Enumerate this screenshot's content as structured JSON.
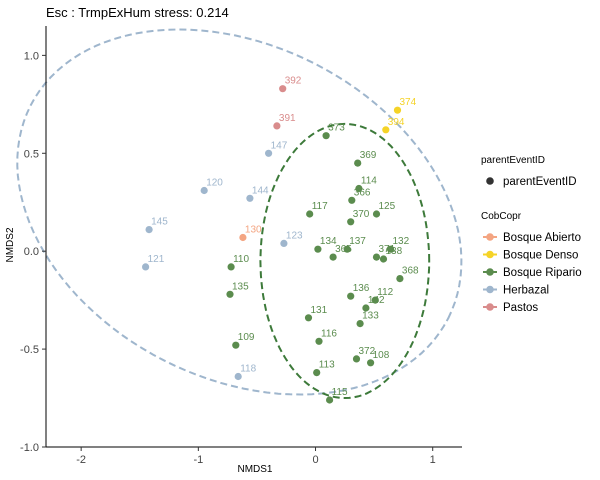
{
  "chart_data": {
    "type": "scatter",
    "title": "Esc : TrmpExHum stress: 0.214",
    "xlabel": "NMDS1",
    "ylabel": "NMDS2",
    "xlim": [
      -2.3,
      1.25
    ],
    "ylim": [
      -1.0,
      1.15
    ],
    "x_ticks": [
      -2,
      -1,
      0,
      1
    ],
    "y_ticks": [
      -1.0,
      -0.5,
      0.0,
      0.5,
      1.0
    ],
    "grid": false,
    "legend_placement": "right",
    "legend_shape": {
      "title": "parentEventID",
      "entries": [
        "parentEventID"
      ]
    },
    "legend_color": {
      "title": "CobCopr",
      "entries": [
        {
          "name": "Bosque Abierto",
          "color": "#f4a582"
        },
        {
          "name": "Bosque Denso",
          "color": "#f5d327"
        },
        {
          "name": "Bosque Ripario",
          "color": "#5b8c4e"
        },
        {
          "name": "Herbazal",
          "color": "#9fb6cd"
        },
        {
          "name": "Pastos",
          "color": "#d98c8c"
        }
      ]
    },
    "series": [
      {
        "name": "Bosque Abierto",
        "color": "#f4a582",
        "points": [
          {
            "label": "130",
            "x": -0.62,
            "y": 0.07
          }
        ]
      },
      {
        "name": "Bosque Denso",
        "color": "#f5d327",
        "points": [
          {
            "label": "374",
            "x": 0.7,
            "y": 0.72
          },
          {
            "label": "394",
            "x": 0.6,
            "y": 0.62
          }
        ]
      },
      {
        "name": "Bosque Ripario",
        "color": "#5b8c4e",
        "points": [
          {
            "label": "373",
            "x": 0.09,
            "y": 0.59
          },
          {
            "label": "369",
            "x": 0.36,
            "y": 0.45
          },
          {
            "label": "114",
            "x": 0.37,
            "y": 0.32
          },
          {
            "label": "366",
            "x": 0.31,
            "y": 0.26
          },
          {
            "label": "125",
            "x": 0.52,
            "y": 0.19
          },
          {
            "label": "117",
            "x": -0.05,
            "y": 0.19
          },
          {
            "label": "370",
            "x": 0.3,
            "y": 0.15
          },
          {
            "label": "134",
            "x": 0.02,
            "y": 0.01
          },
          {
            "label": "137",
            "x": 0.27,
            "y": 0.01
          },
          {
            "label": "132",
            "x": 0.64,
            "y": 0.01
          },
          {
            "label": "365",
            "x": 0.15,
            "y": -0.03
          },
          {
            "label": "371",
            "x": 0.52,
            "y": -0.03
          },
          {
            "label": "138",
            "x": 0.58,
            "y": -0.04
          },
          {
            "label": "368",
            "x": 0.72,
            "y": -0.14
          },
          {
            "label": "110",
            "x": -0.72,
            "y": -0.08
          },
          {
            "label": "136",
            "x": 0.3,
            "y": -0.23
          },
          {
            "label": "112",
            "x": 0.51,
            "y": -0.25
          },
          {
            "label": "135",
            "x": -0.73,
            "y": -0.22
          },
          {
            "label": "142",
            "x": 0.43,
            "y": -0.29
          },
          {
            "label": "131",
            "x": -0.06,
            "y": -0.34
          },
          {
            "label": "133",
            "x": 0.38,
            "y": -0.37
          },
          {
            "label": "116",
            "x": 0.03,
            "y": -0.46
          },
          {
            "label": "109",
            "x": -0.68,
            "y": -0.48
          },
          {
            "label": "372",
            "x": 0.35,
            "y": -0.55
          },
          {
            "label": "108",
            "x": 0.47,
            "y": -0.57
          },
          {
            "label": "113",
            "x": 0.01,
            "y": -0.62
          },
          {
            "label": "115",
            "x": 0.12,
            "y": -0.76
          }
        ]
      },
      {
        "name": "Herbazal",
        "color": "#9fb6cd",
        "points": [
          {
            "label": "147",
            "x": -0.4,
            "y": 0.5
          },
          {
            "label": "120",
            "x": -0.95,
            "y": 0.31
          },
          {
            "label": "144",
            "x": -0.56,
            "y": 0.27
          },
          {
            "label": "145",
            "x": -1.42,
            "y": 0.11
          },
          {
            "label": "121",
            "x": -1.45,
            "y": -0.08
          },
          {
            "label": "123",
            "x": -0.27,
            "y": 0.04
          },
          {
            "label": "118",
            "x": -0.66,
            "y": -0.64
          }
        ]
      },
      {
        "name": "Pastos",
        "color": "#d98c8c",
        "points": [
          {
            "label": "392",
            "x": -0.28,
            "y": 0.83
          },
          {
            "label": "391",
            "x": -0.33,
            "y": 0.64
          }
        ]
      }
    ],
    "ellipses": [
      {
        "series": "Herbazal",
        "color": "#9fb6cd",
        "cx": -0.65,
        "cy": 0.2,
        "rx": 2.0,
        "ry": 0.85,
        "angle_deg": -27
      },
      {
        "series": "Bosque Ripario",
        "color": "#3d7a3a",
        "cx": 0.25,
        "cy": -0.05,
        "rx": 0.72,
        "ry": 0.7,
        "angle_deg": 0
      }
    ]
  }
}
